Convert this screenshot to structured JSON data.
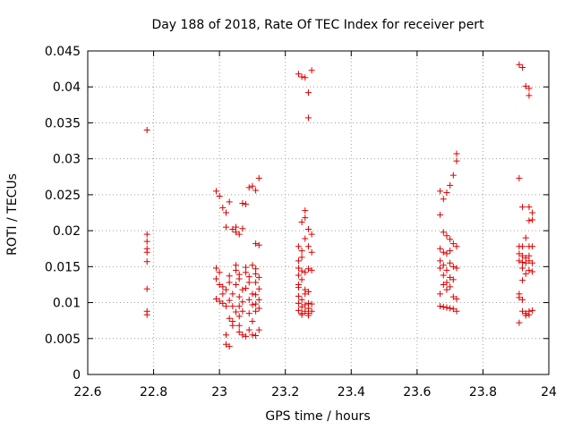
{
  "chart_data": {
    "type": "scatter",
    "title": "Day 188 of 2018, Rate Of TEC Index for receiver pert",
    "xlabel": "GPS time / hours",
    "ylabel": "ROTI / TECUs",
    "xlim": [
      22.6,
      24
    ],
    "ylim": [
      0,
      0.045
    ],
    "x_ticks": [
      "22.6",
      "22.8",
      "23",
      "23.2",
      "23.4",
      "23.6",
      "23.8",
      "24"
    ],
    "y_ticks": [
      "0",
      "0.005",
      "0.01",
      "0.015",
      "0.02",
      "0.025",
      "0.03",
      "0.035",
      "0.04",
      "0.045"
    ],
    "grid": "on (dotted)",
    "marker": "plus",
    "color": "#dd0000",
    "series": [
      {
        "points": [
          [
            22.78,
            0.034
          ],
          [
            22.78,
            0.0195
          ],
          [
            22.78,
            0.0185
          ],
          [
            22.78,
            0.0175
          ],
          [
            22.78,
            0.017
          ],
          [
            22.78,
            0.0157
          ],
          [
            22.78,
            0.0119
          ],
          [
            22.78,
            0.0088
          ],
          [
            22.78,
            0.0083
          ],
          [
            22.99,
            0.0255
          ],
          [
            23.0,
            0.0248
          ],
          [
            23.01,
            0.0232
          ],
          [
            23.02,
            0.0225
          ],
          [
            23.03,
            0.024
          ],
          [
            23.02,
            0.0205
          ],
          [
            23.04,
            0.0202
          ],
          [
            23.05,
            0.0198
          ],
          [
            23.05,
            0.0205
          ],
          [
            23.06,
            0.0195
          ],
          [
            23.07,
            0.0238
          ],
          [
            23.08,
            0.0237
          ],
          [
            23.09,
            0.026
          ],
          [
            23.1,
            0.0262
          ],
          [
            23.11,
            0.0256
          ],
          [
            23.12,
            0.0273
          ],
          [
            23.07,
            0.0203
          ],
          [
            23.11,
            0.0182
          ],
          [
            23.12,
            0.018
          ],
          [
            22.99,
            0.0148
          ],
          [
            23.0,
            0.0142
          ],
          [
            22.99,
            0.0133
          ],
          [
            23.0,
            0.0125
          ],
          [
            23.01,
            0.0122
          ],
          [
            23.01,
            0.0112
          ],
          [
            22.99,
            0.0105
          ],
          [
            23.0,
            0.0102
          ],
          [
            23.01,
            0.0099
          ],
          [
            23.02,
            0.0095
          ],
          [
            23.02,
            0.0118
          ],
          [
            23.03,
            0.0137
          ],
          [
            23.03,
            0.0128
          ],
          [
            23.04,
            0.0112
          ],
          [
            23.03,
            0.0103
          ],
          [
            23.04,
            0.0095
          ],
          [
            23.05,
            0.0087
          ],
          [
            23.03,
            0.0078
          ],
          [
            23.04,
            0.0074
          ],
          [
            23.04,
            0.0068
          ],
          [
            23.02,
            0.0055
          ],
          [
            23.02,
            0.0042
          ],
          [
            23.03,
            0.0039
          ],
          [
            23.05,
            0.0152
          ],
          [
            23.05,
            0.0145
          ],
          [
            23.06,
            0.0139
          ],
          [
            23.06,
            0.0133
          ],
          [
            23.05,
            0.0125
          ],
          [
            23.07,
            0.0118
          ],
          [
            23.06,
            0.0108
          ],
          [
            23.07,
            0.0101
          ],
          [
            23.06,
            0.0095
          ],
          [
            23.07,
            0.0088
          ],
          [
            23.06,
            0.0081
          ],
          [
            23.06,
            0.0068
          ],
          [
            23.06,
            0.0059
          ],
          [
            23.07,
            0.0055
          ],
          [
            23.08,
            0.0053
          ],
          [
            23.08,
            0.0149
          ],
          [
            23.08,
            0.0142
          ],
          [
            23.09,
            0.0136
          ],
          [
            23.09,
            0.0128
          ],
          [
            23.08,
            0.012
          ],
          [
            23.1,
            0.0112
          ],
          [
            23.09,
            0.0104
          ],
          [
            23.1,
            0.0097
          ],
          [
            23.09,
            0.0085
          ],
          [
            23.1,
            0.0074
          ],
          [
            23.09,
            0.0062
          ],
          [
            23.1,
            0.0055
          ],
          [
            23.1,
            0.0152
          ],
          [
            23.11,
            0.0147
          ],
          [
            23.11,
            0.014
          ],
          [
            23.12,
            0.0135
          ],
          [
            23.11,
            0.0128
          ],
          [
            23.12,
            0.0119
          ],
          [
            23.11,
            0.0111
          ],
          [
            23.12,
            0.0104
          ],
          [
            23.11,
            0.0098
          ],
          [
            23.12,
            0.0092
          ],
          [
            23.11,
            0.0088
          ],
          [
            23.12,
            0.0062
          ],
          [
            23.11,
            0.0054
          ],
          [
            23.24,
            0.0418
          ],
          [
            23.25,
            0.0414
          ],
          [
            23.26,
            0.0413
          ],
          [
            23.28,
            0.0423
          ],
          [
            23.27,
            0.0392
          ],
          [
            23.27,
            0.0357
          ],
          [
            23.26,
            0.0228
          ],
          [
            23.26,
            0.0218
          ],
          [
            23.25,
            0.0212
          ],
          [
            23.27,
            0.0202
          ],
          [
            23.28,
            0.0195
          ],
          [
            23.26,
            0.0189
          ],
          [
            23.24,
            0.0178
          ],
          [
            23.25,
            0.0172
          ],
          [
            23.27,
            0.0178
          ],
          [
            23.28,
            0.017
          ],
          [
            23.25,
            0.0163
          ],
          [
            23.24,
            0.0158
          ],
          [
            23.24,
            0.0148
          ],
          [
            23.25,
            0.0144
          ],
          [
            23.26,
            0.0142
          ],
          [
            23.27,
            0.0147
          ],
          [
            23.28,
            0.0145
          ],
          [
            23.24,
            0.0138
          ],
          [
            23.25,
            0.0132
          ],
          [
            23.24,
            0.0125
          ],
          [
            23.24,
            0.0121
          ],
          [
            23.26,
            0.0118
          ],
          [
            23.27,
            0.0115
          ],
          [
            23.26,
            0.0112
          ],
          [
            23.24,
            0.0109
          ],
          [
            23.25,
            0.0104
          ],
          [
            23.24,
            0.0099
          ],
          [
            23.26,
            0.0097
          ],
          [
            23.27,
            0.0099
          ],
          [
            23.28,
            0.0098
          ],
          [
            23.25,
            0.0094
          ],
          [
            23.27,
            0.0092
          ],
          [
            23.24,
            0.0089
          ],
          [
            23.26,
            0.0088
          ],
          [
            23.28,
            0.0088
          ],
          [
            23.25,
            0.0085
          ],
          [
            23.27,
            0.0085
          ],
          [
            23.25,
            0.0083
          ],
          [
            23.27,
            0.0082
          ],
          [
            23.67,
            0.0255
          ],
          [
            23.69,
            0.0253
          ],
          [
            23.68,
            0.0244
          ],
          [
            23.7,
            0.0263
          ],
          [
            23.71,
            0.0277
          ],
          [
            23.72,
            0.0297
          ],
          [
            23.72,
            0.0307
          ],
          [
            23.67,
            0.0222
          ],
          [
            23.68,
            0.0198
          ],
          [
            23.69,
            0.0193
          ],
          [
            23.7,
            0.0188
          ],
          [
            23.71,
            0.0182
          ],
          [
            23.72,
            0.0178
          ],
          [
            23.67,
            0.0175
          ],
          [
            23.68,
            0.017
          ],
          [
            23.7,
            0.0172
          ],
          [
            23.69,
            0.0168
          ],
          [
            23.67,
            0.0158
          ],
          [
            23.68,
            0.0152
          ],
          [
            23.67,
            0.0148
          ],
          [
            23.69,
            0.0145
          ],
          [
            23.7,
            0.0155
          ],
          [
            23.71,
            0.015
          ],
          [
            23.72,
            0.0148
          ],
          [
            23.68,
            0.0138
          ],
          [
            23.7,
            0.0135
          ],
          [
            23.71,
            0.0132
          ],
          [
            23.69,
            0.0128
          ],
          [
            23.68,
            0.0125
          ],
          [
            23.7,
            0.0122
          ],
          [
            23.69,
            0.0118
          ],
          [
            23.67,
            0.0112
          ],
          [
            23.71,
            0.0108
          ],
          [
            23.72,
            0.0105
          ],
          [
            23.67,
            0.0095
          ],
          [
            23.68,
            0.0094
          ],
          [
            23.69,
            0.0093
          ],
          [
            23.7,
            0.0092
          ],
          [
            23.71,
            0.0091
          ],
          [
            23.72,
            0.0088
          ],
          [
            23.91,
            0.0431
          ],
          [
            23.92,
            0.0427
          ],
          [
            23.93,
            0.0401
          ],
          [
            23.94,
            0.0398
          ],
          [
            23.94,
            0.0388
          ],
          [
            23.91,
            0.0273
          ],
          [
            23.92,
            0.0233
          ],
          [
            23.94,
            0.0233
          ],
          [
            23.95,
            0.0225
          ],
          [
            23.94,
            0.0214
          ],
          [
            23.95,
            0.0215
          ],
          [
            23.93,
            0.019
          ],
          [
            23.91,
            0.0178
          ],
          [
            23.92,
            0.0178
          ],
          [
            23.94,
            0.0178
          ],
          [
            23.95,
            0.0178
          ],
          [
            23.91,
            0.0168
          ],
          [
            23.92,
            0.0165
          ],
          [
            23.93,
            0.0162
          ],
          [
            23.94,
            0.0165
          ],
          [
            23.91,
            0.0158
          ],
          [
            23.92,
            0.0156
          ],
          [
            23.93,
            0.0155
          ],
          [
            23.94,
            0.0158
          ],
          [
            23.95,
            0.0155
          ],
          [
            23.92,
            0.0148
          ],
          [
            23.94,
            0.0145
          ],
          [
            23.95,
            0.0143
          ],
          [
            23.93,
            0.014
          ],
          [
            23.92,
            0.0131
          ],
          [
            23.91,
            0.0112
          ],
          [
            23.91,
            0.0107
          ],
          [
            23.92,
            0.0104
          ],
          [
            23.92,
            0.0088
          ],
          [
            23.93,
            0.0085
          ],
          [
            23.94,
            0.0088
          ],
          [
            23.95,
            0.0089
          ],
          [
            23.93,
            0.0082
          ],
          [
            23.94,
            0.0083
          ],
          [
            23.91,
            0.0072
          ]
        ]
      }
    ]
  }
}
